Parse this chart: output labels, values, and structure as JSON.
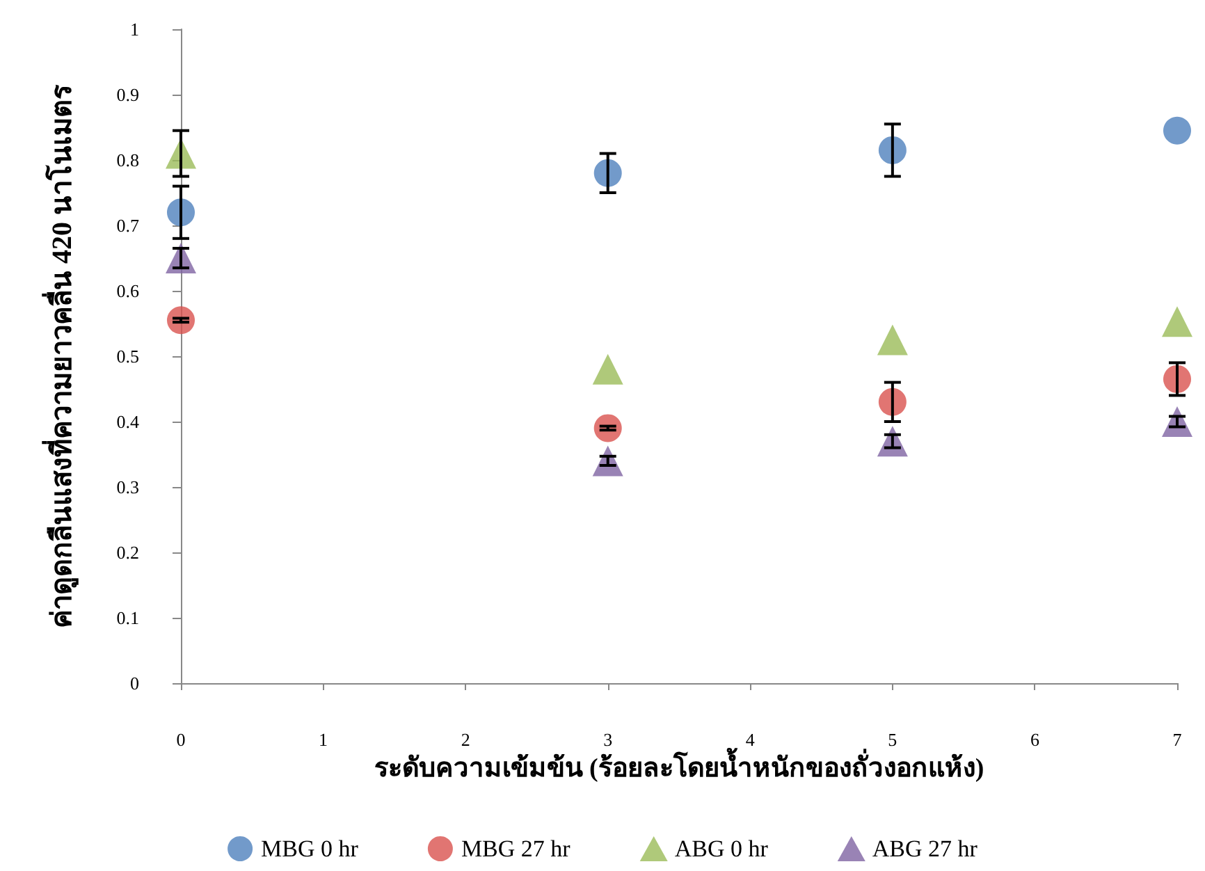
{
  "chart_data": {
    "type": "scatter",
    "xlabel": "ระดับความเข้มข้น (ร้อยละโดยน้ำหนักของถั่วงอกแห้ง)",
    "ylabel": "ค่าดูดกลืนแสงที่ความยาวคลื่น 420 นาโนเมตร",
    "x": [
      0,
      3,
      5,
      7
    ],
    "series": [
      {
        "name": "MBG 0 hr",
        "color": "#4f81bd",
        "marker": "circle",
        "values": [
          0.72,
          0.78,
          0.815,
          0.845
        ],
        "errors": [
          0.04,
          0.03,
          0.04,
          null
        ]
      },
      {
        "name": "MBG 27 hr",
        "color": "#d9534f",
        "marker": "circle",
        "values": [
          0.555,
          0.39,
          0.43,
          0.465
        ],
        "errors": [
          0.003,
          0.003,
          0.03,
          0.025
        ]
      },
      {
        "name": "ABG 0 hr",
        "color": "#9bbb59",
        "marker": "triangle",
        "values": [
          0.81,
          0.48,
          0.525,
          0.553
        ],
        "errors": [
          0.035,
          null,
          null,
          null
        ]
      },
      {
        "name": "ABG 27 hr",
        "color": "#8064a2",
        "marker": "triangle",
        "values": [
          0.65,
          0.34,
          0.37,
          0.4
        ],
        "errors": [
          0.015,
          0.007,
          0.01,
          0.008
        ]
      }
    ],
    "xlim": [
      0,
      7
    ],
    "xticks": [
      0,
      1,
      2,
      3,
      4,
      5,
      6,
      7
    ],
    "ylim": [
      0,
      1
    ],
    "yticks": [
      0,
      0.1,
      0.2,
      0.3,
      0.4,
      0.5,
      0.6,
      0.7,
      0.8,
      0.9,
      1
    ],
    "grid": false,
    "legend": "bottom"
  }
}
